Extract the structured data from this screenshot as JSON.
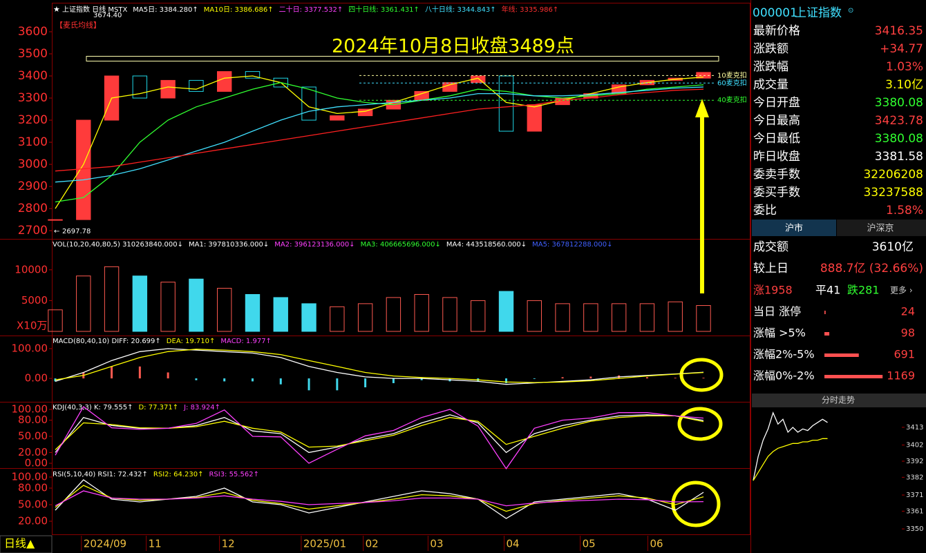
{
  "chart_data": [
    {
      "type": "candlestick",
      "title": "2024年10月8日收盘3489点",
      "label": "【麦氏均线】",
      "legend": [
        {
          "text": "上证指数 日线 MSTX",
          "color": "#ffffff"
        },
        {
          "text": "MA5日: 3384.280↑",
          "color": "#ffffff"
        },
        {
          "text": "MA10日: 3386.686↑",
          "color": "#ffff00"
        },
        {
          "text": "二十日: 3377.532↑",
          "color": "#ff40ff"
        },
        {
          "text": "四十日线: 3361.431↑",
          "color": "#30ff30"
        },
        {
          "text": "八十日线: 3344.843↑",
          "color": "#40e0ff"
        },
        {
          "text": "年线: 3335.986↑",
          "color": "#ff3030"
        }
      ],
      "ylim": [
        2666,
        3728
      ],
      "yticks": [
        2700,
        2800,
        2900,
        3000,
        3100,
        3200,
        3300,
        3400,
        3500,
        3600
      ],
      "xlim": [
        0,
        23
      ],
      "xticks": [
        {
          "value": 1,
          "label": "2024/09"
        },
        {
          "value": 3.3,
          "label": "11"
        },
        {
          "value": 5.9,
          "label": "12"
        },
        {
          "value": 8.8,
          "label": "2025/01"
        },
        {
          "value": 11,
          "label": "02"
        },
        {
          "value": 13.3,
          "label": "03"
        },
        {
          "value": 16,
          "label": "04"
        },
        {
          "value": 18.7,
          "label": "05"
        },
        {
          "value": 21.1,
          "label": "06"
        }
      ],
      "up_color": "#ff3b3b",
      "down_color": "#20d8e8",
      "series": [
        {
          "color": "#ff3b3b",
          "values": [
            2750,
            3200,
            3400,
            3300,
            3380,
            3330,
            3420,
            3390,
            3350,
            3200,
            3220,
            3250,
            3290,
            3330,
            3370,
            3400,
            3150,
            3270,
            3300,
            3320,
            3360,
            3380,
            3390,
            3416
          ]
        },
        {
          "color": "#ffff00",
          "values": [
            2800,
            3000,
            3300,
            3320,
            3350,
            3340,
            3390,
            3400,
            3370,
            3260,
            3230,
            3240,
            3280,
            3320,
            3360,
            3390,
            3280,
            3260,
            3290,
            3320,
            3350,
            3370,
            3385,
            3395
          ]
        },
        {
          "color": "#30ff30",
          "values": [
            2830,
            2850,
            2950,
            3100,
            3200,
            3260,
            3300,
            3340,
            3370,
            3340,
            3300,
            3280,
            3270,
            3290,
            3310,
            3340,
            3330,
            3310,
            3300,
            3310,
            3320,
            3340,
            3350,
            3360
          ]
        },
        {
          "color": "#40e0ff",
          "values": [
            2920,
            2930,
            2950,
            2980,
            3020,
            3060,
            3100,
            3150,
            3200,
            3240,
            3260,
            3270,
            3280,
            3290,
            3300,
            3320,
            3320,
            3310,
            3310,
            3315,
            3325,
            3335,
            3345,
            3350
          ]
        },
        {
          "color": "#ff2020",
          "values": [
            2970,
            2980,
            2990,
            3010,
            3030,
            3050,
            3070,
            3090,
            3110,
            3130,
            3150,
            3170,
            3190,
            3210,
            3230,
            3250,
            3260,
            3270,
            3290,
            3300,
            3315,
            3325,
            3335,
            3340
          ]
        }
      ],
      "high": {
        "value": 3674.4,
        "label": "3674.40"
      },
      "low": {
        "value": 2697.78,
        "label": "2697.78"
      },
      "reference": 3489,
      "mc_lines": [
        {
          "label": "10麦克扣",
          "value": 3402,
          "color": "#ffffa0"
        },
        {
          "label": "60麦克扣",
          "value": 3368,
          "color": "#40e0ff"
        },
        {
          "label": "40麦克扣",
          "value": 3290,
          "color": "#30ff30"
        }
      ]
    },
    {
      "type": "bar",
      "unit": "X10万",
      "legend": [
        {
          "text": "VOL(10,20,40,80,5) 310263840.000↓",
          "color": "#ffffff"
        },
        {
          "text": "MA1: 397810336.000↓",
          "color": "#ffffff"
        },
        {
          "text": "MA2: 396123136.000↓",
          "color": "#ff40ff"
        },
        {
          "text": "MA3: 406665696.000↓",
          "color": "#30ff30"
        },
        {
          "text": "MA4: 443518560.000↓",
          "color": "#ffffff"
        },
        {
          "text": "MA5: 367812288.000↓",
          "color": "#4060ff"
        }
      ],
      "ylim": [
        0,
        14800
      ],
      "yticks": [
        5000,
        10000
      ],
      "xlim": [
        0,
        23
      ],
      "up_color": "#ff5a50",
      "down_color": "#40d8ec",
      "series": [
        {
          "values": [
            3500,
            9000,
            10500,
            9000,
            8000,
            8500,
            7000,
            6000,
            5500,
            4500,
            4000,
            4500,
            5500,
            6000,
            5500,
            5000,
            6500,
            5000,
            4500,
            4500,
            4500,
            4500,
            4800,
            4200
          ]
        }
      ]
    },
    {
      "type": "macd",
      "legend": [
        {
          "text": "MACD(80,40,10) DIFF: 20.699↑",
          "color": "#ffffff"
        },
        {
          "text": "DEA: 19.710↑",
          "color": "#ffff00"
        },
        {
          "text": "MACD: 1.977↑",
          "color": "#ff40ff"
        }
      ],
      "ylim": [
        -74,
        137
      ],
      "yticks": [
        {
          "value": 0,
          "label": "0.00"
        },
        {
          "value": 100,
          "label": "100.00"
        }
      ],
      "xlim": [
        0,
        23
      ],
      "histogram": {
        "up_color": "#ff5a50",
        "down_color": "#40d8ec",
        "values": [
          -10,
          20,
          40,
          40,
          20,
          -6,
          -10,
          -10,
          -20,
          -40,
          -40,
          -30,
          -16,
          -6,
          -10,
          -10,
          -16,
          -2,
          4,
          6,
          10,
          4,
          2,
          1.977
        ]
      },
      "series": [
        {
          "color": "#ffffff",
          "values": [
            -10,
            20,
            60,
            90,
            100,
            95,
            90,
            85,
            70,
            40,
            20,
            5,
            0,
            0,
            -5,
            -10,
            -20,
            -15,
            -10,
            -5,
            5,
            10,
            15,
            20.699
          ]
        },
        {
          "color": "#ffff00",
          "values": [
            -5,
            10,
            40,
            70,
            90,
            98,
            95,
            90,
            80,
            60,
            40,
            20,
            8,
            3,
            0,
            -5,
            -12,
            -14,
            -12,
            -8,
            0,
            8,
            14,
            19.71
          ]
        }
      ]
    },
    {
      "type": "line",
      "legend": [
        {
          "text": "KDJ(40,3,3) K: 79.555↑",
          "color": "#ffffff"
        },
        {
          "text": "D: 77.371↑",
          "color": "#ffff00"
        },
        {
          "text": "J: 83.924↑",
          "color": "#ff40ff"
        }
      ],
      "ylim": [
        -11.5,
        110.3
      ],
      "yticks": [
        {
          "value": 0,
          "label": "0.00"
        },
        {
          "value": 20,
          "label": "20.00"
        },
        {
          "value": 50,
          "label": "50.00"
        },
        {
          "value": 80,
          "label": "80.00"
        },
        {
          "value": 100,
          "label": "100.00"
        }
      ],
      "xlim": [
        0,
        23
      ],
      "series": [
        {
          "color": "#ffffff",
          "values": [
            20,
            85,
            70,
            65,
            65,
            70,
            85,
            60,
            55,
            20,
            30,
            45,
            55,
            75,
            90,
            75,
            20,
            55,
            70,
            80,
            88,
            90,
            88,
            79.555
          ]
        },
        {
          "color": "#ffff00",
          "values": [
            25,
            75,
            72,
            66,
            65,
            68,
            78,
            65,
            58,
            30,
            32,
            42,
            52,
            70,
            85,
            78,
            35,
            50,
            65,
            78,
            85,
            88,
            88,
            77.371
          ]
        },
        {
          "color": "#ff40ff",
          "values": [
            15,
            105,
            66,
            63,
            65,
            74,
            99,
            50,
            49,
            0,
            26,
            51,
            61,
            85,
            100,
            69,
            -10,
            65,
            80,
            84,
            94,
            94,
            88,
            83.924
          ]
        }
      ]
    },
    {
      "type": "line",
      "legend": [
        {
          "text": "RSI(5,10,40) RSI1: 72.432↑",
          "color": "#ffffff"
        },
        {
          "text": "RSI2: 64.230↑",
          "color": "#ffff00"
        },
        {
          "text": "RSI3: 55.562↑",
          "color": "#ff40ff"
        }
      ],
      "ylim": [
        -5,
        112.5
      ],
      "yticks": [
        {
          "value": 20,
          "label": "20.00"
        },
        {
          "value": 50,
          "label": "50.00"
        },
        {
          "value": 80,
          "label": "80.00"
        },
        {
          "value": 100,
          "label": "100.00"
        }
      ],
      "xlim": [
        0,
        23
      ],
      "series": [
        {
          "color": "#ffffff",
          "values": [
            40,
            95,
            60,
            55,
            60,
            65,
            80,
            55,
            50,
            35,
            45,
            55,
            65,
            75,
            70,
            60,
            25,
            55,
            60,
            65,
            70,
            60,
            40,
            72.432
          ]
        },
        {
          "color": "#ffff00",
          "values": [
            45,
            85,
            62,
            58,
            60,
            63,
            72,
            58,
            52,
            42,
            48,
            54,
            60,
            68,
            66,
            60,
            38,
            52,
            58,
            62,
            66,
            62,
            50,
            64.23
          ]
        },
        {
          "color": "#ff40ff",
          "values": [
            48,
            75,
            62,
            60,
            60,
            62,
            66,
            60,
            56,
            50,
            52,
            54,
            57,
            62,
            62,
            60,
            48,
            53,
            56,
            58,
            60,
            59,
            55,
            55.562
          ]
        }
      ]
    },
    {
      "type": "line",
      "title": "分时走势",
      "ylim": [
        3341.9,
        3422.4
      ],
      "yticks": [
        3350,
        3361,
        3371,
        3382,
        3392,
        3402,
        3413
      ],
      "xlim": [
        0,
        30
      ],
      "series": [
        {
          "color": "#ffffff",
          "values": [
            3380,
            3395,
            3405,
            3412,
            3422,
            3415,
            3418,
            3410,
            3413,
            3410,
            3412,
            3411,
            3414,
            3416,
            3418,
            3416
          ]
        },
        {
          "color": "#ffff00",
          "values": [
            3380,
            3385,
            3390,
            3395,
            3398,
            3400,
            3401,
            3402,
            3403,
            3403,
            3404,
            3404,
            3405,
            3405,
            3406,
            3406
          ]
        }
      ]
    }
  ],
  "quote": {
    "code": "000001",
    "name": "上证指数",
    "rows": [
      {
        "label": "最新价格",
        "value": "3416.35",
        "color": "#ff4040"
      },
      {
        "label": "涨跌额",
        "value": "+34.77",
        "color": "#ff4040"
      },
      {
        "label": "涨跌幅",
        "value": "1.03%",
        "color": "#ff4040"
      },
      {
        "label": "成交量",
        "value": "3.10亿",
        "color": "#ffff00"
      },
      {
        "label": "今日开盘",
        "value": "3380.08",
        "color": "#30ff30"
      },
      {
        "label": "今日最高",
        "value": "3423.78",
        "color": "#ff4040"
      },
      {
        "label": "今日最低",
        "value": "3380.08",
        "color": "#30ff30"
      },
      {
        "label": "昨日收盘",
        "value": "3381.58",
        "color": "#ffffff"
      },
      {
        "label": "委卖手数",
        "value": "32206208",
        "color": "#ffff00"
      },
      {
        "label": "委买手数",
        "value": "33237588",
        "color": "#ffff00"
      },
      {
        "label": "委比",
        "value": "1.58%",
        "color": "#ff4040"
      }
    ]
  },
  "tabs": [
    "沪市",
    "沪深京"
  ],
  "market": {
    "turnover_label": "成交额",
    "turnover": "3610亿",
    "change_label": "较上日",
    "change": "888.7亿 (32.66%)",
    "up": "涨1958",
    "flat": "平41",
    "down": "跌281",
    "more": "更多 ›",
    "stats": [
      {
        "label": "当日 涨停",
        "value": 24
      },
      {
        "label": "涨幅 >5%",
        "value": 98
      },
      {
        "label": "涨幅2%-5%",
        "value": 691
      },
      {
        "label": "涨幅0%-2%",
        "value": 1169
      }
    ]
  },
  "footer": "日线▲"
}
